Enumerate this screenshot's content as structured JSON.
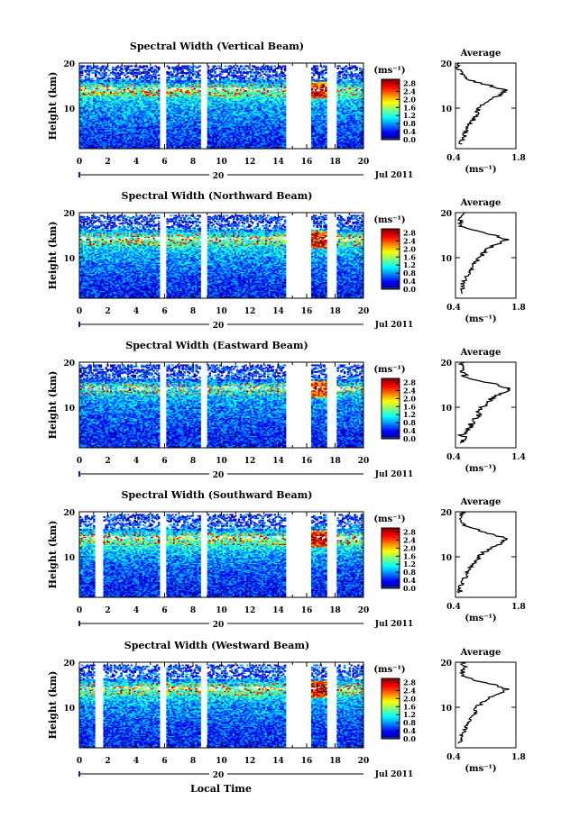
{
  "figure": {
    "x_axis_title": "Local Time",
    "date_label": "Jul 2011",
    "day_label": "20",
    "colorbar_unit": "(ms⁻¹)",
    "avg_title": "Average",
    "avg_unit": "(ms⁻¹)",
    "y_axis_title": "Height (km)"
  },
  "chart_data": [
    {
      "type": "heatmap",
      "title": "Spectral Width (Vertical Beam)",
      "ylabel": "Height (km)",
      "x_ticks": [
        0,
        2,
        4,
        6,
        8,
        10,
        12,
        14,
        16,
        18,
        20
      ],
      "y_ticks": [
        10,
        20
      ],
      "xlim": [
        0,
        20
      ],
      "ylim": [
        1,
        20
      ],
      "data_gaps_hours": [
        [
          5.6,
          6.1
        ],
        [
          8.5,
          9.0
        ],
        [
          14.5,
          16.3
        ],
        [
          17.3,
          18.0
        ]
      ],
      "colorbar_ticks": [
        0.0,
        0.4,
        0.8,
        1.2,
        1.6,
        2.0,
        2.4,
        2.8
      ],
      "colorbar_range": [
        0.0,
        3.0
      ],
      "average_profile": {
        "xlim": [
          0.4,
          1.8
        ],
        "x_ticks": [
          0.4,
          1.8
        ],
        "y_ticks": [
          10,
          20
        ],
        "height_km": [
          2,
          3,
          4,
          5,
          6,
          7,
          8,
          9,
          10,
          11,
          12,
          13,
          14,
          15,
          16,
          17,
          18,
          19,
          20
        ],
        "width_ms": [
          0.5,
          0.55,
          0.6,
          0.65,
          0.7,
          0.8,
          0.85,
          0.9,
          0.95,
          1.05,
          1.2,
          1.45,
          1.55,
          1.2,
          0.8,
          0.6,
          0.5,
          0.45,
          0.45
        ]
      }
    },
    {
      "type": "heatmap",
      "title": "Spectral Width (Northward Beam)",
      "ylabel": "Height (km)",
      "x_ticks": [
        0,
        2,
        4,
        6,
        8,
        10,
        12,
        14,
        16,
        18,
        20
      ],
      "y_ticks": [
        10,
        20
      ],
      "xlim": [
        0,
        20
      ],
      "ylim": [
        1,
        20
      ],
      "data_gaps_hours": [
        [
          5.6,
          6.1
        ],
        [
          8.5,
          9.0
        ],
        [
          14.5,
          16.3
        ],
        [
          17.3,
          18.0
        ]
      ],
      "colorbar_ticks": [
        0.0,
        0.4,
        0.8,
        1.2,
        1.6,
        2.0,
        2.4,
        2.8
      ],
      "colorbar_range": [
        0.0,
        3.0
      ],
      "average_profile": {
        "xlim": [
          0.4,
          1.8
        ],
        "x_ticks": [
          0.4,
          1.8
        ],
        "y_ticks": [
          10,
          20
        ],
        "height_km": [
          2,
          3,
          4,
          5,
          6,
          7,
          8,
          9,
          10,
          11,
          12,
          13,
          14,
          15,
          16,
          17,
          18,
          19,
          20
        ],
        "width_ms": [
          0.5,
          0.55,
          0.55,
          0.6,
          0.65,
          0.75,
          0.8,
          0.85,
          0.95,
          1.05,
          1.15,
          1.35,
          1.6,
          1.3,
          0.9,
          0.55,
          0.5,
          0.55,
          0.6
        ]
      }
    },
    {
      "type": "heatmap",
      "title": "Spectral Width (Eastward Beam)",
      "ylabel": "Height (km)",
      "x_ticks": [
        0,
        2,
        4,
        6,
        8,
        10,
        12,
        14,
        16,
        18,
        20
      ],
      "y_ticks": [
        10,
        20
      ],
      "xlim": [
        0,
        20
      ],
      "ylim": [
        1,
        20
      ],
      "data_gaps_hours": [
        [
          5.6,
          6.1
        ],
        [
          8.5,
          9.0
        ],
        [
          14.5,
          16.3
        ],
        [
          17.3,
          18.0
        ]
      ],
      "colorbar_ticks": [
        0.0,
        0.4,
        0.8,
        1.2,
        1.6,
        2.0,
        2.4,
        2.8
      ],
      "colorbar_range": [
        0.0,
        3.0
      ],
      "average_profile": {
        "xlim": [
          0.4,
          1.4
        ],
        "x_ticks": [
          0.4,
          1.4
        ],
        "y_ticks": [
          10,
          20
        ],
        "height_km": [
          2,
          3,
          4,
          5,
          6,
          7,
          8,
          9,
          10,
          11,
          12,
          13,
          14,
          15,
          16,
          17,
          18,
          19,
          20
        ],
        "width_ms": [
          0.5,
          0.55,
          0.5,
          0.6,
          0.65,
          0.7,
          0.75,
          0.8,
          0.85,
          0.9,
          1.0,
          1.15,
          1.3,
          1.1,
          0.75,
          0.55,
          0.5,
          0.55,
          0.5
        ]
      }
    },
    {
      "type": "heatmap",
      "title": "Spectral Width (Southward Beam)",
      "ylabel": "Height (km)",
      "x_ticks": [
        0,
        2,
        4,
        6,
        8,
        10,
        12,
        14,
        16,
        18,
        20
      ],
      "y_ticks": [
        10,
        20
      ],
      "xlim": [
        0,
        20
      ],
      "ylim": [
        1,
        20
      ],
      "data_gaps_hours": [
        [
          1.0,
          1.6
        ],
        [
          5.6,
          6.1
        ],
        [
          8.5,
          9.0
        ],
        [
          14.5,
          16.3
        ],
        [
          17.3,
          18.0
        ]
      ],
      "colorbar_ticks": [
        0.0,
        0.4,
        0.8,
        1.2,
        1.6,
        2.0,
        2.4,
        2.8
      ],
      "colorbar_range": [
        0.0,
        3.0
      ],
      "average_profile": {
        "xlim": [
          0.4,
          1.8
        ],
        "x_ticks": [
          0.4,
          1.8
        ],
        "y_ticks": [
          10,
          20
        ],
        "height_km": [
          2,
          3,
          4,
          5,
          6,
          7,
          8,
          9,
          10,
          11,
          12,
          13,
          14,
          15,
          16,
          17,
          18,
          19,
          20
        ],
        "width_ms": [
          0.5,
          0.5,
          0.55,
          0.6,
          0.65,
          0.7,
          0.75,
          0.85,
          0.95,
          1.05,
          1.25,
          1.45,
          1.6,
          1.25,
          0.9,
          0.6,
          0.5,
          0.55,
          0.55
        ]
      }
    },
    {
      "type": "heatmap",
      "title": "Spectral Width (Westward Beam)",
      "ylabel": "Height (km)",
      "x_ticks": [
        0,
        2,
        4,
        6,
        8,
        10,
        12,
        14,
        16,
        18,
        20
      ],
      "y_ticks": [
        10,
        20
      ],
      "xlim": [
        0,
        20
      ],
      "ylim": [
        1,
        20
      ],
      "data_gaps_hours": [
        [
          1.0,
          1.6
        ],
        [
          5.6,
          6.1
        ],
        [
          8.5,
          9.0
        ],
        [
          14.5,
          16.3
        ],
        [
          17.3,
          18.0
        ]
      ],
      "colorbar_ticks": [
        0.0,
        0.4,
        0.8,
        1.2,
        1.6,
        2.0,
        2.4,
        2.8
      ],
      "colorbar_range": [
        0.0,
        3.0
      ],
      "average_profile": {
        "xlim": [
          0.4,
          1.8
        ],
        "x_ticks": [
          0.4,
          1.8
        ],
        "y_ticks": [
          10,
          20
        ],
        "height_km": [
          2,
          3,
          4,
          5,
          6,
          7,
          8,
          9,
          10,
          11,
          12,
          13,
          14,
          15,
          16,
          17,
          18,
          19,
          20
        ],
        "width_ms": [
          0.5,
          0.55,
          0.55,
          0.6,
          0.65,
          0.7,
          0.8,
          0.85,
          0.9,
          1.0,
          1.15,
          1.4,
          1.6,
          1.3,
          0.85,
          0.6,
          0.55,
          0.6,
          0.55
        ]
      }
    }
  ]
}
